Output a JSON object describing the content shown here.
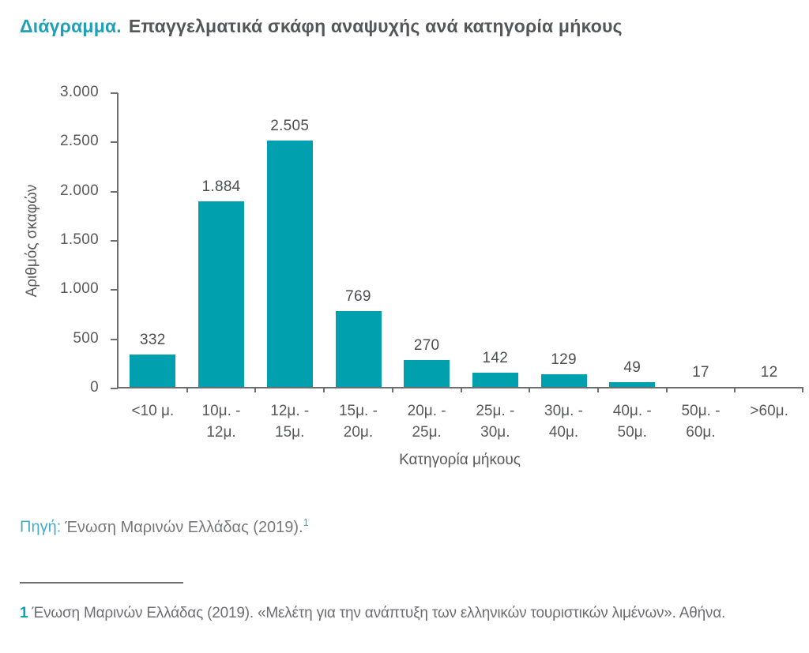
{
  "title": {
    "prefix": "Διάγραμμα.",
    "main": "Επαγγελματικά σκάφη αναψυχής ανά κατηγορία μήκους"
  },
  "chart_data": {
    "type": "bar",
    "title": "Επαγγελματικά σκάφη αναψυχής ανά κατηγορία μήκους",
    "categories": [
      "<10 μ.",
      "10μ. - 12μ.",
      "12μ. - 15μ.",
      "15μ. - 20μ.",
      "20μ. - 25μ.",
      "25μ. - 30μ.",
      "30μ. - 40μ.",
      "40μ. - 50μ.",
      "50μ. - 60μ.",
      ">60μ."
    ],
    "category_display": [
      [
        "<10 μ."
      ],
      [
        "10μ. -",
        "12μ."
      ],
      [
        "12μ. -",
        "15μ."
      ],
      [
        "15μ. -",
        "20μ."
      ],
      [
        "20μ. -",
        "25μ."
      ],
      [
        "25μ. -",
        "30μ."
      ],
      [
        "30μ. -",
        "40μ."
      ],
      [
        "40μ. -",
        "50μ."
      ],
      [
        "50μ. -",
        "60μ."
      ],
      [
        ">60μ."
      ]
    ],
    "values": [
      332,
      1884,
      2505,
      769,
      270,
      142,
      129,
      49,
      17,
      12
    ],
    "value_labels": [
      "332",
      "1.884",
      "2.505",
      "769",
      "270",
      "142",
      "129",
      "49",
      "17",
      "12"
    ],
    "xlabel": "Κατηγορία μήκους",
    "ylabel": "Αριθμός σκαφών",
    "ylim": [
      0,
      3000
    ],
    "ytick_step": 500,
    "ytick_labels": [
      "0",
      "500",
      "1.000",
      "1.500",
      "2.000",
      "2.500",
      "3.000"
    ],
    "grid": false,
    "legend_position": "none",
    "bar_color": "#00A0AF"
  },
  "source": {
    "label": "Πηγή:",
    "text": "Ένωση Μαρινών Ελλάδας (2019).",
    "superscript": "1"
  },
  "footnote": {
    "marker": "1",
    "text": "Ένωση Μαρινών Ελλάδας (2019). «Μελέτη για την ανάπτυξη των ελληνικών τουριστικών λιμένων». Αθήνα."
  },
  "colors": {
    "bar": "#00A0AF",
    "title_accent": "#1FA0B6",
    "title_text": "#55565A",
    "axis_line": "#6D6E71",
    "axis_text": "#58595B",
    "value_label": "#4C4D4F",
    "source_accent": "#45ABCA",
    "source_text": "#77787B",
    "footnote_accent": "#0BA2B4",
    "footnote_text": "#6D6E71"
  }
}
